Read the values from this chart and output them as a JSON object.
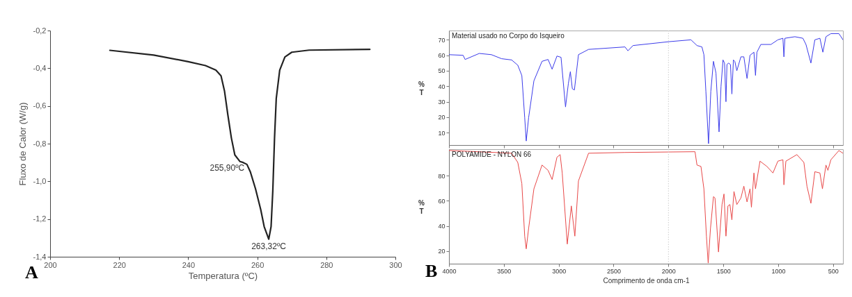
{
  "chart_data": [
    {
      "type": "line",
      "xlabel": "Temperatura (ºC)",
      "ylabel": "Fluxo de Calor (W/g)",
      "x": [
        217.3,
        230,
        240,
        245,
        248,
        249.5,
        250.5,
        251.5,
        252.5,
        253.5,
        255,
        255.9,
        257,
        258,
        259.5,
        261,
        262,
        263.32,
        264,
        264.5,
        265,
        265.5,
        266.5,
        268,
        270,
        275,
        292.6
      ],
      "series": [
        {
          "color": "#222222",
          "values": [
            -0.305,
            -0.33,
            -0.365,
            -0.386,
            -0.41,
            -0.44,
            -0.52,
            -0.65,
            -0.77,
            -0.86,
            -0.895,
            -0.9,
            -0.91,
            -0.95,
            -1.04,
            -1.15,
            -1.24,
            -1.307,
            -1.24,
            -1.05,
            -0.77,
            -0.56,
            -0.41,
            -0.34,
            -0.315,
            -0.304,
            -0.3
          ]
        }
      ],
      "xlim": [
        200,
        300
      ],
      "xticks": [
        200,
        220,
        240,
        260,
        280,
        300
      ],
      "ylim": [
        -1.4,
        -0.2
      ],
      "yticks": [
        {
          "value": -1.4,
          "label": "-1,4"
        },
        {
          "value": -1.2,
          "label": "-1,2"
        },
        {
          "value": -1.0,
          "label": "-1,0"
        },
        {
          "value": -0.8,
          "label": "-0,8"
        },
        {
          "value": -0.6,
          "label": "-0,6"
        },
        {
          "value": -0.4,
          "label": "-0,4"
        },
        {
          "value": -0.2,
          "label": "-0,2"
        }
      ],
      "annotations": [
        {
          "text": "255,90ºC",
          "x": 255.9,
          "y": -0.9
        },
        {
          "text": "263,32ºC",
          "x": 263.32,
          "y": -1.307
        },
        "A"
      ],
      "grid": false
    },
    {
      "type": "line",
      "title": "Material usado no Corpo do Isqueiro",
      "ylabel": "% T",
      "x": [
        4000,
        3871,
        3853,
        3724,
        3613,
        3521,
        3429,
        3373,
        3336,
        3310,
        3296,
        3274,
        3226,
        3152,
        3097,
        3060,
        3016,
        2979,
        2938,
        2912,
        2894,
        2876,
        2857,
        2820,
        2728,
        2396,
        2369,
        2323,
        1995,
        1795,
        1740,
        1695,
        1677,
        1659,
        1635,
        1614,
        1590,
        1567,
        1539,
        1521,
        1503,
        1489,
        1476,
        1467,
        1453,
        1435,
        1422,
        1408,
        1395,
        1377,
        1340,
        1313,
        1284,
        1257,
        1221,
        1207,
        1194,
        1158,
        1066,
        1003,
        957,
        948,
        939,
        848,
        775,
        747,
        702,
        666,
        620,
        593,
        565,
        520,
        447,
        428,
        410
      ],
      "series": [
        {
          "color": "#3b3bea",
          "values": [
            60.4,
            60,
            57.3,
            61.2,
            60.4,
            57.8,
            57,
            53.6,
            46.9,
            19.8,
            4.6,
            19.8,
            43.5,
            56.1,
            57.3,
            51,
            59.5,
            58.7,
            26.6,
            41.8,
            49.4,
            38.4,
            37.6,
            60.4,
            63.8,
            65.4,
            62.9,
            66.3,
            68.8,
            70,
            66.3,
            65.4,
            60.4,
            36.7,
            2.9,
            36.7,
            56.1,
            48.5,
            10.5,
            40,
            57,
            55,
            30,
            54,
            55,
            54,
            35,
            57,
            56,
            50,
            59,
            59,
            45,
            60,
            62,
            47,
            62,
            67,
            67,
            70,
            71,
            59,
            71,
            72,
            71,
            67,
            55,
            70,
            71,
            62,
            72,
            74,
            74,
            72,
            70
          ]
        }
      ],
      "xlim": [
        4000,
        410
      ],
      "xticks": [
        4000,
        3500,
        3000,
        2500,
        2000,
        1500,
        1000,
        500
      ],
      "ylim": [
        2,
        76
      ],
      "yticks": [
        10,
        20,
        30,
        40,
        50,
        60,
        70
      ],
      "ref_lines": [
        {
          "axis": "x",
          "value": 2000,
          "color": "#cccccc",
          "line_style": "dotted"
        }
      ],
      "tick_labels": "y",
      "grid": false
    },
    {
      "type": "line",
      "title": "POLYAMIDE - NYLON 66",
      "xlabel": "Comprimento de onda cm-1",
      "ylabel": "% T",
      "x": [
        4000,
        3429,
        3373,
        3336,
        3310,
        3296,
        3274,
        3226,
        3152,
        3097,
        3060,
        3016,
        2987,
        2968,
        2922,
        2885,
        2853,
        2820,
        2728,
        2396,
        1758,
        1740,
        1704,
        1677,
        1654,
        1638,
        1617,
        1590,
        1576,
        1544,
        1512,
        1494,
        1476,
        1458,
        1440,
        1422,
        1403,
        1377,
        1340,
        1313,
        1284,
        1257,
        1244,
        1221,
        1207,
        1166,
        1103,
        1048,
        1003,
        957,
        948,
        930,
        830,
        766,
        738,
        702,
        666,
        620,
        597,
        565,
        547,
        520,
        447,
        410
      ],
      "series": [
        {
          "color": "#e84848",
          "values": [
            100,
            97.8,
            90.5,
            73.7,
            31.9,
            21.8,
            38.2,
            69.5,
            88.4,
            84.2,
            76.9,
            94.6,
            96.7,
            82.1,
            25.6,
            55.9,
            31.9,
            75.8,
            97.8,
            98.4,
            99,
            88.4,
            87.3,
            69.5,
            31.9,
            10.5,
            38.2,
            63.3,
            62.2,
            19.3,
            57,
            65.4,
            31.9,
            55.9,
            57,
            44.9,
            67.4,
            57,
            62.2,
            71.6,
            59.1,
            69.5,
            54.9,
            82.1,
            69.5,
            91.5,
            87.3,
            82.1,
            91.5,
            92.6,
            72.7,
            91.5,
            96.7,
            90.5,
            71.6,
            58,
            83.1,
            82.1,
            69.5,
            88.4,
            84.2,
            92.6,
            99.9,
            97.8
          ]
        }
      ],
      "xlim": [
        4000,
        410
      ],
      "xticks": [
        4000,
        3500,
        3000,
        2500,
        2000,
        1500,
        1000,
        500
      ],
      "ylim": [
        10,
        101
      ],
      "yticks": [
        20,
        40,
        60,
        80
      ],
      "ref_lines": [
        {
          "axis": "x",
          "value": 2000,
          "color": "#cccccc",
          "line_style": "dotted"
        }
      ],
      "annotations": [
        "B"
      ],
      "grid": false
    }
  ]
}
